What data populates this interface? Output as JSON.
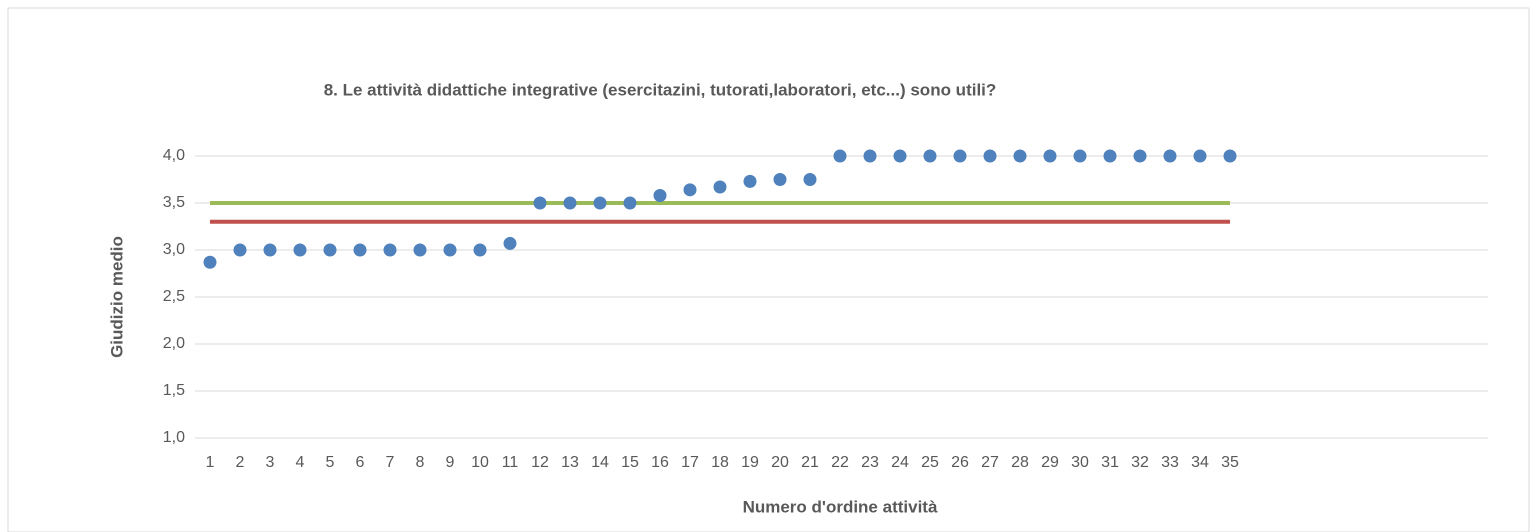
{
  "chart_data": {
    "type": "scatter",
    "title": "8. Le attività didattiche integrative (esercitazini, tutorati,laboratori, etc...) sono utili?",
    "x_label": "Numero d'ordine attività",
    "y_label": "Giudizio medio",
    "categories": [
      "1",
      "2",
      "3",
      "4",
      "5",
      "6",
      "7",
      "8",
      "9",
      "10",
      "11",
      "12",
      "13",
      "14",
      "15",
      "16",
      "17",
      "18",
      "19",
      "20",
      "21",
      "22",
      "23",
      "24",
      "25",
      "26",
      "27",
      "28",
      "29",
      "30",
      "31",
      "32",
      "33",
      "34",
      "35"
    ],
    "series": [
      {
        "color": "#4f81bd",
        "values": [
          2.87,
          3.0,
          3.0,
          3.0,
          3.0,
          3.0,
          3.0,
          3.0,
          3.0,
          3.0,
          3.07,
          3.5,
          3.5,
          3.5,
          3.5,
          3.58,
          3.64,
          3.67,
          3.73,
          3.75,
          3.75,
          4.0,
          4.0,
          4.0,
          4.0,
          4.0,
          4.0,
          4.0,
          4.0,
          4.0,
          4.0,
          4.0,
          4.0,
          4.0,
          4.0
        ]
      }
    ],
    "reference_lines": [
      {
        "value": 3.5,
        "color": "#9bbb59"
      },
      {
        "value": 3.3,
        "color": "#c0504d"
      }
    ],
    "ylim": [
      1.0,
      4.0
    ],
    "yticks": [
      {
        "value": 1.0,
        "label": "1,0"
      },
      {
        "value": 1.5,
        "label": "1,5"
      },
      {
        "value": 2.0,
        "label": "2,0"
      },
      {
        "value": 2.5,
        "label": "2,5"
      },
      {
        "value": 3.0,
        "label": "3,0"
      },
      {
        "value": 3.5,
        "label": "3,5"
      },
      {
        "value": 4.0,
        "label": "4,0"
      }
    ],
    "grid": true
  }
}
